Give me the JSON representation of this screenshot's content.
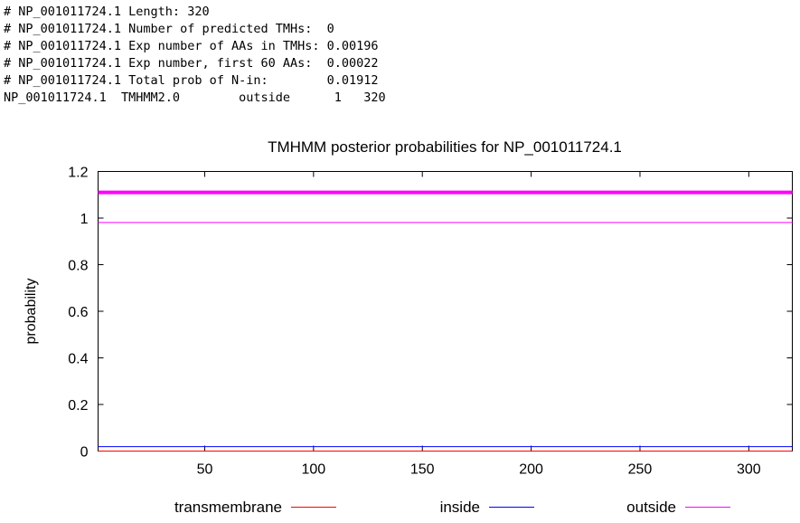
{
  "summary_lines": [
    "# NP_001011724.1 Length: 320",
    "# NP_001011724.1 Number of predicted TMHs:  0",
    "# NP_001011724.1 Exp number of AAs in TMHs: 0.00196",
    "# NP_001011724.1 Exp number, first 60 AAs:  0.00022",
    "# NP_001011724.1 Total prob of N-in:        0.01912",
    "NP_001011724.1  TMHMM2.0        outside      1   320"
  ],
  "chart_data": {
    "type": "line",
    "title": "TMHMM posterior probabilities for NP_001011724.1",
    "xlabel": "",
    "ylabel": "probability",
    "xlim": [
      1,
      320
    ],
    "ylim": [
      0,
      1.2
    ],
    "x_ticks": [
      50,
      100,
      150,
      200,
      250,
      300
    ],
    "y_ticks": [
      0,
      0.2,
      0.4,
      0.6,
      0.8,
      1,
      1.2
    ],
    "y_tick_labels": [
      "0",
      "0.2",
      "0.4",
      "0.6",
      "0.8",
      "1",
      "1.2"
    ],
    "grid": false,
    "legend_position": "bottom",
    "series": [
      {
        "name": "transmembrane",
        "color": "#ff0000",
        "x": [
          1,
          320
        ],
        "values": [
          0,
          0
        ]
      },
      {
        "name": "inside",
        "color": "#0000ff",
        "x": [
          1,
          320
        ],
        "values": [
          0.019,
          0.019
        ]
      },
      {
        "name": "outside",
        "color": "#ff00ff",
        "x": [
          1,
          320
        ],
        "values": [
          0.981,
          0.981
        ]
      }
    ],
    "region_bars": [
      {
        "type": "outside",
        "start": 1,
        "end": 320,
        "color": "#ff00ff",
        "y": 1.11
      }
    ]
  }
}
